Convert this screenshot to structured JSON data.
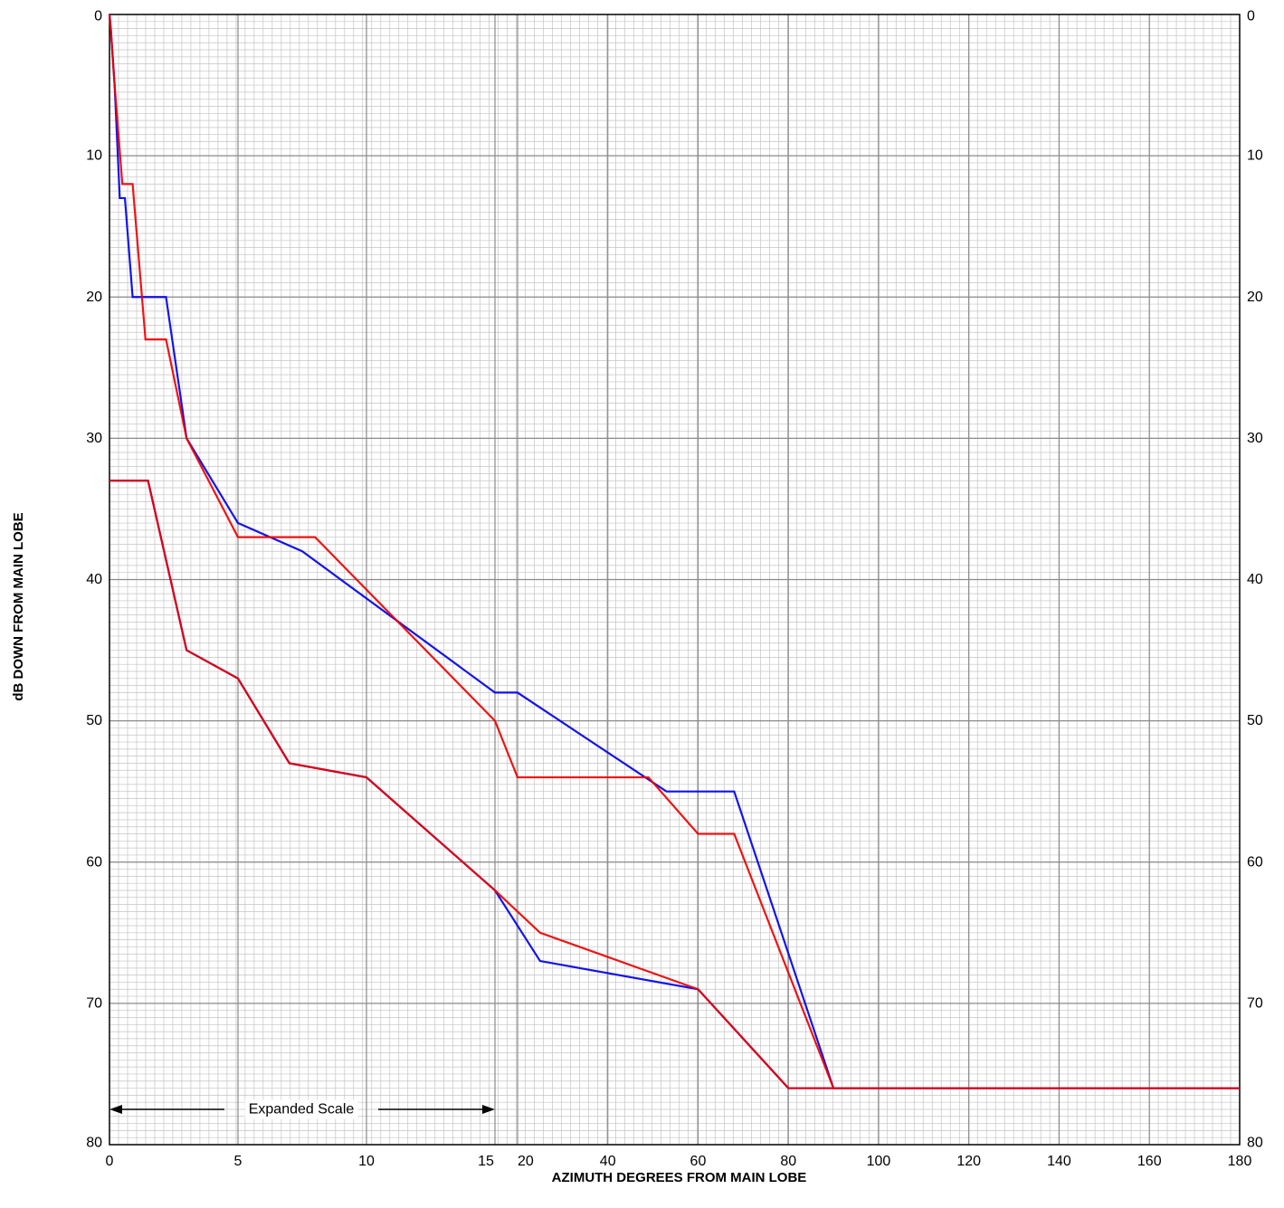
{
  "chart_data": {
    "type": "line",
    "title": "",
    "xlabel": "AZIMUTH DEGREES FROM MAIN LOBE",
    "ylabel": "dB DOWN FROM MAIN LOBE",
    "ylim": [
      0,
      80
    ],
    "y_inverted": true,
    "grid": true,
    "x_axis_segments": [
      {
        "from": 0,
        "to": 15,
        "scale": "expanded"
      },
      {
        "from": 15,
        "to": 180,
        "scale": "normal"
      }
    ],
    "x_ticks": [
      {
        "value": 0,
        "label": "0"
      },
      {
        "value": 5,
        "label": "5"
      },
      {
        "value": 10,
        "label": "10"
      },
      {
        "value": 15,
        "label": "15"
      },
      {
        "value": 20,
        "label": "20"
      },
      {
        "value": 40,
        "label": "40"
      },
      {
        "value": 60,
        "label": "60"
      },
      {
        "value": 80,
        "label": "80"
      },
      {
        "value": 100,
        "label": "100"
      },
      {
        "value": 120,
        "label": "120"
      },
      {
        "value": 140,
        "label": "140"
      },
      {
        "value": 160,
        "label": "160"
      },
      {
        "value": 180,
        "label": "180"
      }
    ],
    "y_ticks": [
      "0",
      "10",
      "20",
      "30",
      "40",
      "50",
      "60",
      "70",
      "80"
    ],
    "annotation": {
      "text": "Expanded Scale",
      "from_x": 0,
      "to_x": 15,
      "y": 77.5
    },
    "series": [
      {
        "color": "#0000ee",
        "x": [
          0,
          0.05,
          0.2,
          0.4,
          0.6,
          0.9,
          1.2,
          2.2,
          3.0,
          5.0,
          7.5,
          15.0,
          20.0,
          53.0,
          68.0,
          90.0,
          180.0
        ],
        "y": [
          0,
          1,
          5,
          13,
          13,
          20,
          20,
          20,
          30,
          36,
          38,
          48,
          48,
          55,
          55,
          76,
          76
        ]
      },
      {
        "color": "#ee0000",
        "x": [
          0,
          0.05,
          0.2,
          0.5,
          0.9,
          1.4,
          2.2,
          3.0,
          5.0,
          8.0,
          15.0,
          20.0,
          49.0,
          60.0,
          68.0,
          90.0,
          180.0
        ],
        "y": [
          0,
          1,
          5,
          12,
          12,
          23,
          23,
          30,
          37,
          37,
          50,
          54,
          54,
          58,
          58,
          76,
          76
        ]
      },
      {
        "color": "#0000ee",
        "x": [
          0,
          1.5,
          3.0,
          5.0,
          7.0,
          10.0,
          15.0,
          25.0,
          60.0,
          80.0,
          180.0
        ],
        "y": [
          33,
          33,
          45,
          47,
          53,
          54,
          62,
          67,
          69,
          76,
          76
        ]
      },
      {
        "color": "#ee0000",
        "x": [
          0,
          1.5,
          3.0,
          5.0,
          7.0,
          10.0,
          15.0,
          25.0,
          60.0,
          80.0,
          180.0
        ],
        "y": [
          33,
          33,
          45,
          47,
          53,
          54,
          62,
          65,
          69,
          76,
          76
        ]
      }
    ]
  }
}
